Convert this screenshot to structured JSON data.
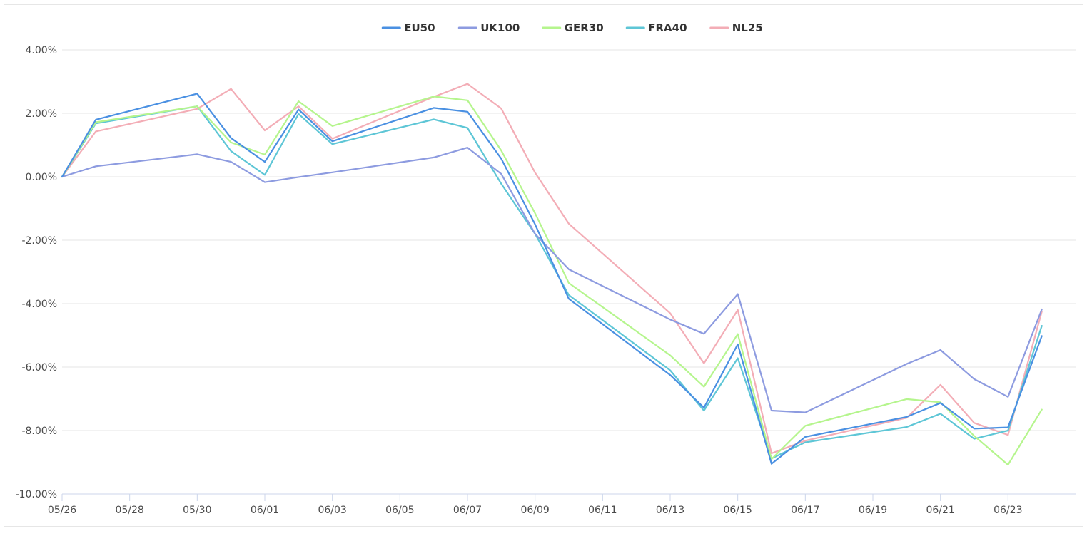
{
  "chart_data": {
    "type": "line",
    "title": "",
    "xlabel": "",
    "ylabel": "",
    "x_ticks": [
      "05/26",
      "05/28",
      "05/30",
      "06/01",
      "06/03",
      "06/05",
      "06/07",
      "06/09",
      "06/11",
      "06/13",
      "06/15",
      "06/17",
      "06/19",
      "06/21",
      "06/23"
    ],
    "y_ticks": [
      "4.00%",
      "2.00%",
      "0.00%",
      "-2.00%",
      "-4.00%",
      "-6.00%",
      "-8.00%",
      "-10.00%"
    ],
    "ylim": [
      -10,
      4
    ],
    "x_range": [
      "2025-05-26",
      "2025-06-25"
    ],
    "legend_position": "top-center",
    "grid": true,
    "x": [
      "2025-05-26",
      "2025-05-27",
      "2025-05-30",
      "2025-05-31",
      "2025-06-01",
      "2025-06-02",
      "2025-06-03",
      "2025-06-06",
      "2025-06-07",
      "2025-06-08",
      "2025-06-09",
      "2025-06-10",
      "2025-06-13",
      "2025-06-14",
      "2025-06-15",
      "2025-06-16",
      "2025-06-17",
      "2025-06-20",
      "2025-06-21",
      "2025-06-22",
      "2025-06-23",
      "2025-06-24"
    ],
    "series": [
      {
        "name": "EU50",
        "color": "#4a90e2",
        "values": [
          0.0,
          1.8,
          2.62,
          1.22,
          0.47,
          2.12,
          1.12,
          2.17,
          2.05,
          0.57,
          -1.5,
          -3.85,
          -6.25,
          -7.28,
          -5.28,
          -9.05,
          -8.2,
          -7.57,
          -7.13,
          -7.94,
          -7.9,
          -5.02
        ]
      },
      {
        "name": "UK100",
        "color": "#8d9be0",
        "values": [
          0.0,
          0.33,
          0.71,
          0.47,
          -0.17,
          -0.01,
          0.14,
          0.61,
          0.92,
          0.09,
          -1.8,
          -2.92,
          -4.5,
          -4.95,
          -3.7,
          -7.37,
          -7.43,
          -5.9,
          -5.46,
          -6.38,
          -6.94,
          -4.18
        ]
      },
      {
        "name": "GER30",
        "color": "#b5f58d",
        "values": [
          0.0,
          1.72,
          2.22,
          1.08,
          0.7,
          2.38,
          1.6,
          2.53,
          2.41,
          0.83,
          -1.15,
          -3.35,
          -5.63,
          -6.62,
          -4.96,
          -8.9,
          -7.85,
          -7.01,
          -7.11,
          -8.17,
          -9.08,
          -7.34
        ]
      },
      {
        "name": "FRA40",
        "color": "#5ec6d6",
        "values": [
          0.0,
          1.68,
          2.22,
          0.81,
          0.06,
          1.98,
          1.03,
          1.81,
          1.54,
          -0.22,
          -1.8,
          -3.73,
          -6.1,
          -7.37,
          -5.72,
          -8.88,
          -8.37,
          -7.89,
          -7.47,
          -8.26,
          -8.0,
          -4.7
        ]
      },
      {
        "name": "NL25",
        "color": "#f3adb6",
        "values": [
          0.0,
          1.43,
          2.14,
          2.77,
          1.46,
          2.22,
          1.2,
          2.52,
          2.93,
          2.15,
          0.13,
          -1.48,
          -4.3,
          -5.88,
          -4.2,
          -8.72,
          -8.32,
          -7.6,
          -6.56,
          -7.76,
          -8.14,
          -4.25
        ]
      }
    ]
  }
}
